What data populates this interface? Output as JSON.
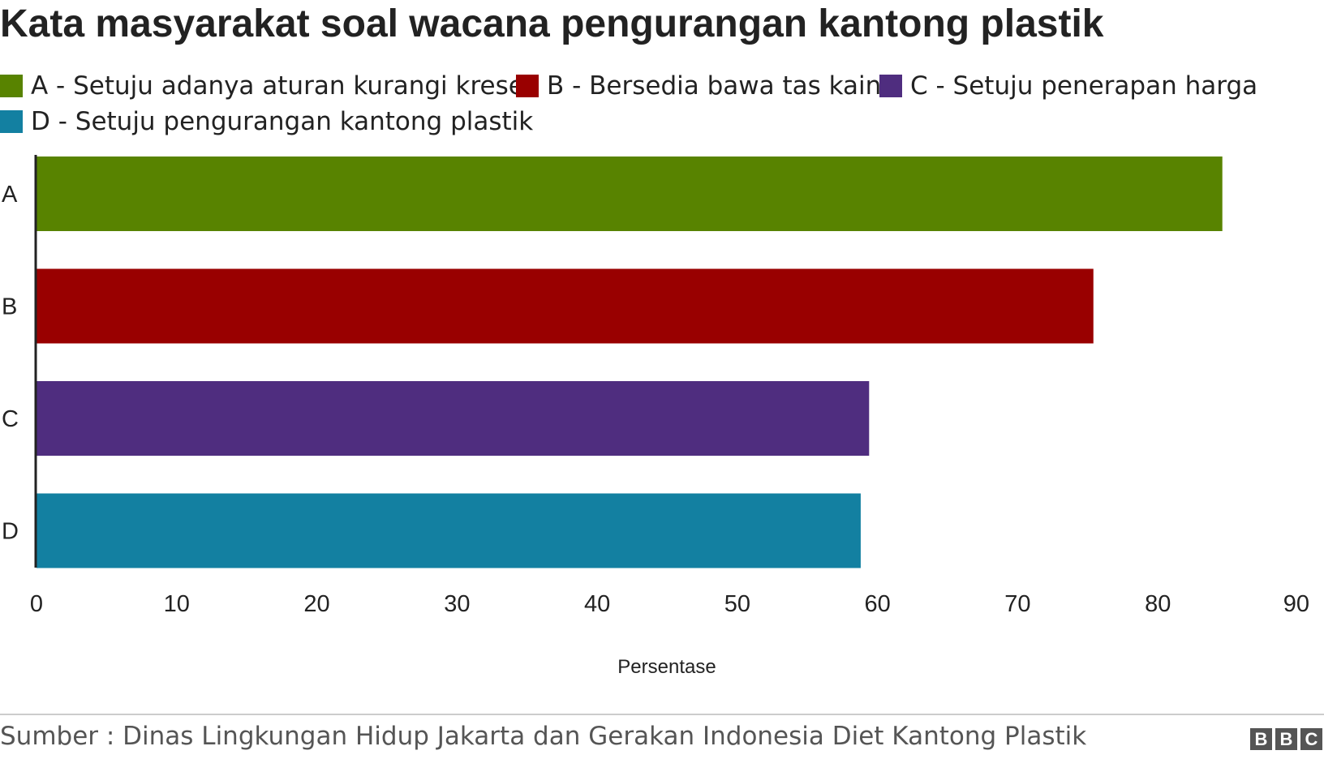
{
  "title": "Kata masyarakat soal wacana pengurangan kantong plastik",
  "source": "Sumber : Dinas Lingkungan Hidup Jakarta dan Gerakan Indonesia Diet Kantong Plastik",
  "logo": [
    "B",
    "B",
    "C"
  ],
  "chart_data": {
    "type": "bar",
    "orientation": "horizontal",
    "categories": [
      "A",
      "B",
      "C",
      "D"
    ],
    "values": [
      84.6,
      75.4,
      59.4,
      58.8
    ],
    "colors": [
      "#588300",
      "#990000",
      "#4f2d7f",
      "#1380a1"
    ],
    "legend": [
      {
        "label": "A - Setuju adanya aturan kurangi kresek",
        "color": "#588300"
      },
      {
        "label": "B - Bersedia bawa tas kain",
        "color": "#990000"
      },
      {
        "label": "C - Setuju penerapan harga",
        "color": "#4f2d7f"
      },
      {
        "label": "D - Setuju pengurangan kantong plastik",
        "color": "#1380a1"
      }
    ],
    "title": "Kata masyarakat soal wacana pengurangan kantong plastik",
    "xlabel": "Persentase",
    "ylabel": "",
    "xlim": [
      0,
      90
    ],
    "xticks": [
      0,
      10,
      20,
      30,
      40,
      50,
      60,
      70,
      80,
      90
    ],
    "grid": false,
    "legend_position": "top"
  }
}
